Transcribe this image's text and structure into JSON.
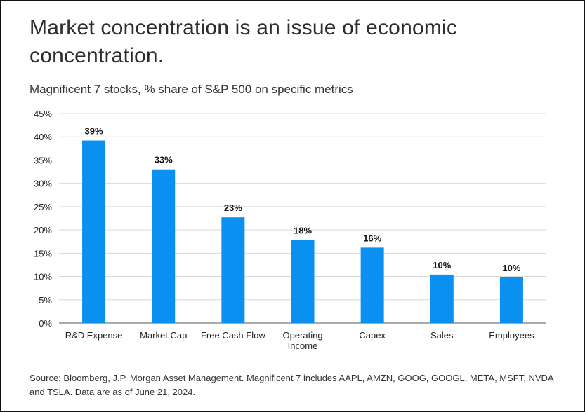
{
  "headline": "Market concentration is an issue of economic concentration.",
  "source": "Source: Bloomberg, J.P. Morgan Asset Management. Magnificent 7 includes AAPL, AMZN, GOOG, GOOGL, META, MSFT, NVDA and TSLA. Data are as of June 21, 2024.",
  "colors": {
    "bar": "#0a90f0",
    "grid": "#d9d9d9",
    "axis": "#555555"
  },
  "chart_data": {
    "type": "bar",
    "title": "Magnificent 7 stocks, % share of S&P 500 on specific metrics",
    "categories": [
      "R&D Expense",
      "Market Cap",
      "Free Cash Flow",
      "Operating Income",
      "Capex",
      "Sales",
      "Employees"
    ],
    "category_lines": [
      [
        "R&D Expense"
      ],
      [
        "Market Cap"
      ],
      [
        "Free Cash Flow"
      ],
      [
        "Operating",
        "Income"
      ],
      [
        "Capex"
      ],
      [
        "Sales"
      ],
      [
        "Employees"
      ]
    ],
    "values": [
      39.2,
      33,
      22.7,
      17.8,
      16.2,
      10.4,
      9.8
    ],
    "data_labels": [
      "39%",
      "33%",
      "23%",
      "18%",
      "16%",
      "10%",
      "10%"
    ],
    "ylim": [
      0,
      45
    ],
    "yticks": [
      0,
      5,
      10,
      15,
      20,
      25,
      30,
      35,
      40,
      45
    ],
    "ytick_labels": [
      "0%",
      "5%",
      "10%",
      "15%",
      "20%",
      "25%",
      "30%",
      "35%",
      "40%",
      "45%"
    ],
    "grid": true,
    "xlabel": "",
    "ylabel": ""
  }
}
